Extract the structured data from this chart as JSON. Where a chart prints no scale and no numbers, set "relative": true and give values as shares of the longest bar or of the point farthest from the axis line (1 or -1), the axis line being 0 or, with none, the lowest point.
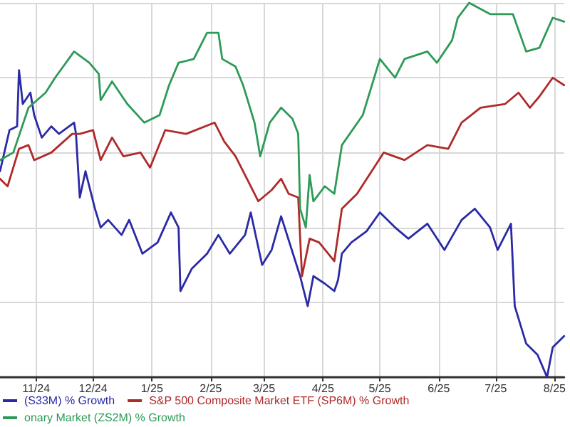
{
  "chart_data": {
    "type": "line",
    "relative": true,
    "grid": true,
    "legend": "bottom",
    "line_style": "solid",
    "marker": "none",
    "xlim": [
      "2024-10-13",
      "2025-08-06"
    ],
    "xticks": [
      {
        "value": "2024-11-01",
        "label": "11/24"
      },
      {
        "value": "2024-12-01",
        "label": "12/24"
      },
      {
        "value": "2025-01-01",
        "label": "1/25"
      },
      {
        "value": "2025-02-01",
        "label": "2/25"
      },
      {
        "value": "2025-03-01",
        "label": "3/25"
      },
      {
        "value": "2025-04-01",
        "label": "4/25"
      },
      {
        "value": "2025-05-01",
        "label": "5/25"
      },
      {
        "value": "2025-06-01",
        "label": "6/25"
      },
      {
        "value": "2025-07-01",
        "label": "7/25"
      },
      {
        "value": "2025-08-01",
        "label": "8/25"
      }
    ],
    "series": [
      {
        "name": "(S33M) % Growth",
        "color": "#2a2aa6",
        "x": [
          "2024-10-13",
          "2024-10-18",
          "2024-10-22",
          "2024-10-23",
          "2024-10-25",
          "2024-10-29",
          "2024-10-31",
          "2024-11-04",
          "2024-11-09",
          "2024-11-13",
          "2024-11-21",
          "2024-11-22",
          "2024-11-24",
          "2024-11-27",
          "2024-12-02",
          "2024-12-05",
          "2024-12-09",
          "2024-12-16",
          "2024-12-20",
          "2024-12-27",
          "2025-01-04",
          "2025-01-11",
          "2025-01-15",
          "2025-01-16",
          "2025-01-22",
          "2025-01-30",
          "2025-02-05",
          "2025-02-11",
          "2025-02-19",
          "2025-02-22",
          "2025-02-28",
          "2025-03-05",
          "2025-03-10",
          "2025-03-20",
          "2025-03-24",
          "2025-03-27",
          "2025-04-02",
          "2025-04-07",
          "2025-04-09",
          "2025-04-11",
          "2025-04-16",
          "2025-04-24",
          "2025-05-01",
          "2025-05-09",
          "2025-05-16",
          "2025-05-26",
          "2025-06-04",
          "2025-06-13",
          "2025-06-20",
          "2025-06-28",
          "2025-07-02",
          "2025-07-09",
          "2025-07-11",
          "2025-07-17",
          "2025-07-23",
          "2025-07-28",
          "2025-07-31",
          "2025-08-06"
        ],
        "values": [
          0.55,
          0.66,
          0.67,
          0.82,
          0.73,
          0.76,
          0.7,
          0.64,
          0.67,
          0.65,
          0.68,
          0.65,
          0.48,
          0.55,
          0.45,
          0.4,
          0.42,
          0.38,
          0.42,
          0.33,
          0.36,
          0.44,
          0.4,
          0.23,
          0.29,
          0.33,
          0.38,
          0.33,
          0.38,
          0.44,
          0.3,
          0.34,
          0.43,
          0.27,
          0.19,
          0.27,
          0.25,
          0.23,
          0.26,
          0.33,
          0.36,
          0.39,
          0.44,
          0.4,
          0.37,
          0.41,
          0.34,
          0.42,
          0.45,
          0.4,
          0.34,
          0.41,
          0.19,
          0.09,
          0.06,
          0.0,
          0.08,
          0.11
        ]
      },
      {
        "name": "S&P 500 Composite Market ETF (SP6M) % Growth",
        "color": "#b02a2a",
        "x": [
          "2024-10-13",
          "2024-10-17",
          "2024-10-23",
          "2024-10-28",
          "2024-10-31",
          "2024-11-09",
          "2024-11-20",
          "2024-11-24",
          "2024-12-01",
          "2024-12-05",
          "2024-12-11",
          "2024-12-17",
          "2024-12-26",
          "2024-12-31",
          "2025-01-08",
          "2025-01-19",
          "2025-02-03",
          "2025-02-08",
          "2025-02-14",
          "2025-02-21",
          "2025-02-26",
          "2025-03-05",
          "2025-03-10",
          "2025-03-14",
          "2025-03-19",
          "2025-03-21",
          "2025-03-25",
          "2025-03-30",
          "2025-04-07",
          "2025-04-11",
          "2025-04-19",
          "2025-05-03",
          "2025-05-14",
          "2025-05-26",
          "2025-06-06",
          "2025-06-13",
          "2025-06-23",
          "2025-07-06",
          "2025-07-13",
          "2025-07-19",
          "2025-07-24",
          "2025-07-31",
          "2025-08-06"
        ],
        "values": [
          0.53,
          0.51,
          0.61,
          0.62,
          0.58,
          0.6,
          0.65,
          0.65,
          0.66,
          0.58,
          0.64,
          0.59,
          0.6,
          0.56,
          0.66,
          0.65,
          0.68,
          0.63,
          0.59,
          0.52,
          0.47,
          0.5,
          0.53,
          0.49,
          0.48,
          0.27,
          0.37,
          0.36,
          0.31,
          0.45,
          0.49,
          0.6,
          0.58,
          0.62,
          0.61,
          0.68,
          0.72,
          0.73,
          0.76,
          0.72,
          0.75,
          0.8,
          0.78
        ]
      },
      {
        "name": "onary Market (ZS2M) % Growth",
        "color": "#2e9a58",
        "x": [
          "2024-10-13",
          "2024-10-20",
          "2024-10-28",
          "2024-11-06",
          "2024-11-11",
          "2024-11-21",
          "2024-11-29",
          "2024-12-04",
          "2024-12-05",
          "2024-12-11",
          "2024-12-19",
          "2024-12-28",
          "2025-01-05",
          "2025-01-10",
          "2025-01-15",
          "2025-01-23",
          "2025-01-30",
          "2025-02-05",
          "2025-02-07",
          "2025-02-14",
          "2025-02-18",
          "2025-02-24",
          "2025-02-27",
          "2025-03-04",
          "2025-03-10",
          "2025-03-16",
          "2025-03-19",
          "2025-03-20",
          "2025-03-23",
          "2025-03-25",
          "2025-03-27",
          "2025-04-02",
          "2025-04-07",
          "2025-04-11",
          "2025-04-22",
          "2025-05-01",
          "2025-05-09",
          "2025-05-14",
          "2025-05-26",
          "2025-05-31",
          "2025-06-08",
          "2025-06-11",
          "2025-06-17",
          "2025-06-28",
          "2025-07-10",
          "2025-07-17",
          "2025-07-24",
          "2025-07-31",
          "2025-08-06"
        ],
        "values": [
          0.58,
          0.6,
          0.72,
          0.76,
          0.8,
          0.87,
          0.84,
          0.81,
          0.74,
          0.79,
          0.73,
          0.68,
          0.7,
          0.78,
          0.84,
          0.85,
          0.92,
          0.92,
          0.85,
          0.83,
          0.78,
          0.68,
          0.59,
          0.68,
          0.72,
          0.69,
          0.65,
          0.45,
          0.4,
          0.54,
          0.47,
          0.51,
          0.49,
          0.62,
          0.7,
          0.85,
          0.8,
          0.85,
          0.87,
          0.84,
          0.9,
          0.96,
          1.0,
          0.97,
          0.97,
          0.87,
          0.88,
          0.96,
          0.95
        ]
      }
    ]
  }
}
